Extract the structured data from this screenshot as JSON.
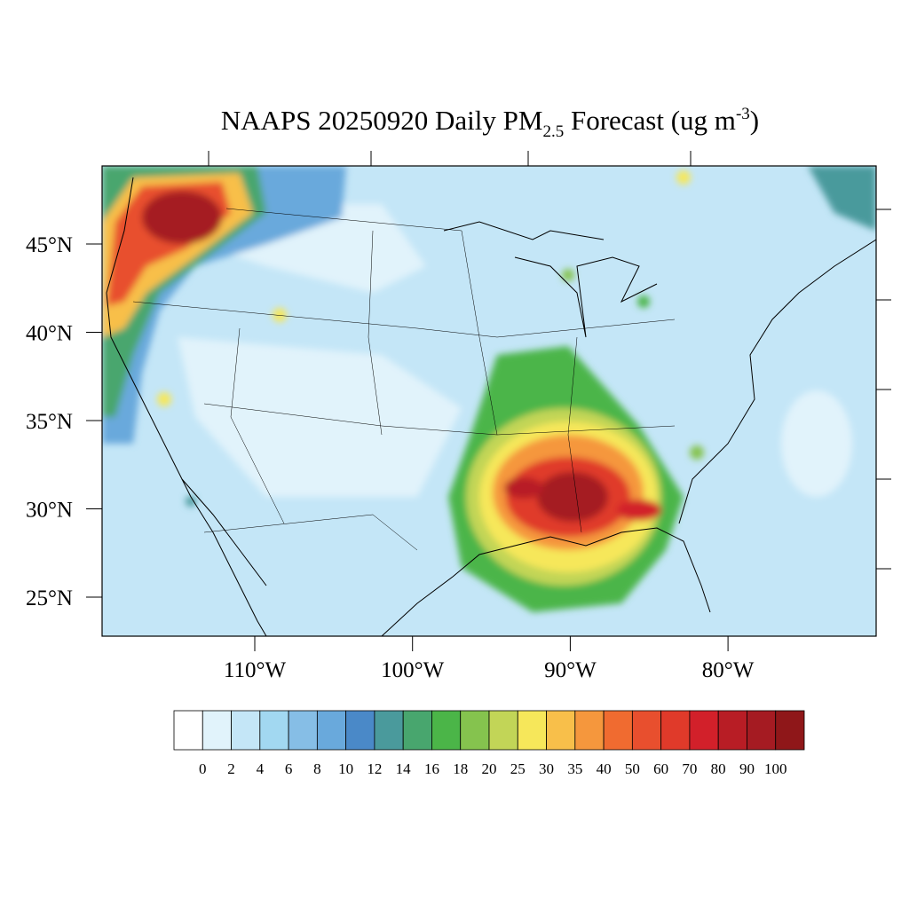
{
  "map": {
    "title": {
      "main": "NAAPS 20250920 Daily PM",
      "sub": "2.5",
      "middle": " Forecast (ug m",
      "sup": "-3",
      "end": ")"
    },
    "lat_ticks": [
      {
        "value": 45,
        "label": "45°N"
      },
      {
        "value": 40,
        "label": "40°N"
      },
      {
        "value": 35,
        "label": "35°N"
      },
      {
        "value": 30,
        "label": "30°N"
      },
      {
        "value": 25,
        "label": "25°N"
      }
    ],
    "lon_ticks": [
      {
        "value": -110,
        "label": "110°W"
      },
      {
        "value": -100,
        "label": "100°W"
      },
      {
        "value": -90,
        "label": "90°W"
      },
      {
        "value": -80,
        "label": "80°W"
      }
    ],
    "colorbar": {
      "levels": [
        0,
        2,
        4,
        6,
        8,
        10,
        12,
        14,
        16,
        18,
        20,
        25,
        30,
        35,
        40,
        50,
        60,
        70,
        80,
        90,
        100
      ],
      "colors": [
        "#ffffff",
        "#e1f3fb",
        "#c4e6f7",
        "#a2d8f1",
        "#86bee6",
        "#69a9dc",
        "#4a89c8",
        "#4a9a9c",
        "#48a66e",
        "#4bb548",
        "#85c34e",
        "#c2d557",
        "#f6e75a",
        "#f8bf4a",
        "#f5973d",
        "#f06b30",
        "#e84f2e",
        "#e03a2a",
        "#d2202a",
        "#b81d25",
        "#a51b22",
        "#8f1719"
      ]
    }
  }
}
